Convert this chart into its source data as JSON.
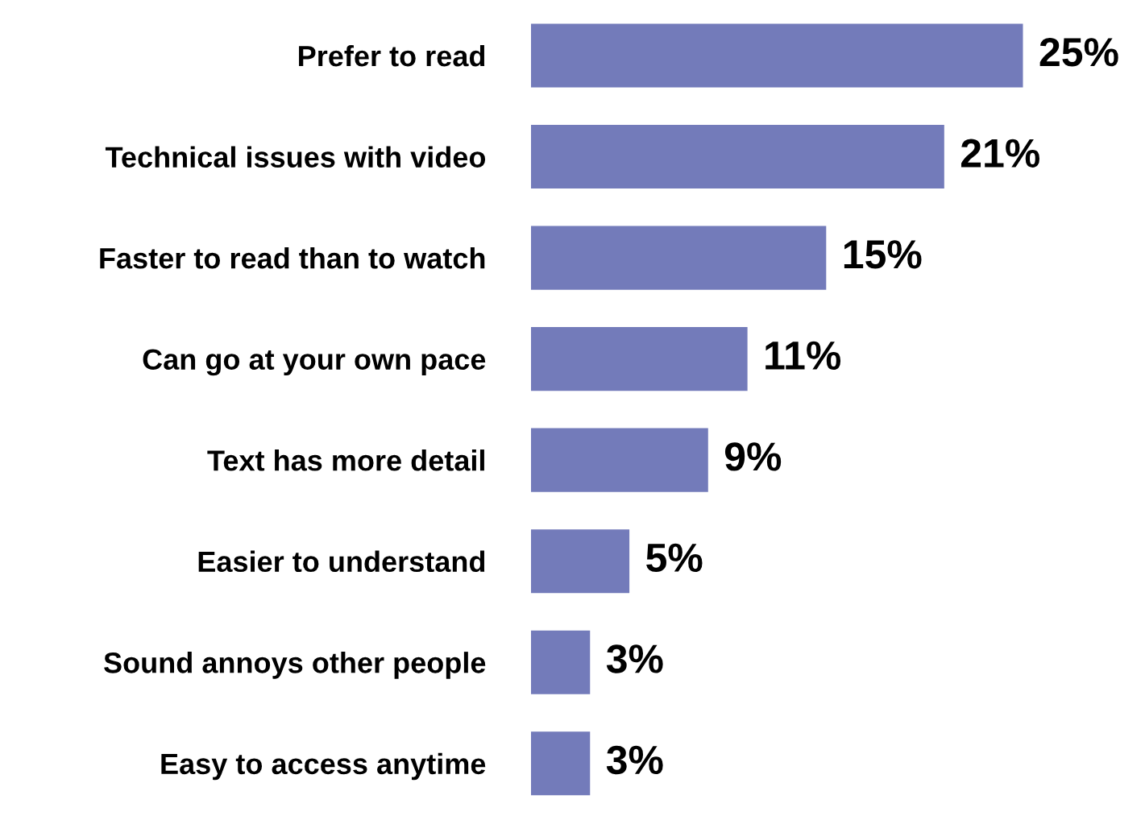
{
  "chart_data": {
    "type": "bar",
    "orientation": "horizontal",
    "categories": [
      "Prefer to read",
      "Technical issues with video",
      "Faster to read than to watch",
      "Can go at your own pace",
      "Text has more detail",
      "Easier to understand",
      "Sound annoys other people",
      "Easy to access anytime"
    ],
    "values": [
      25,
      21,
      15,
      11,
      9,
      5,
      3,
      3
    ],
    "value_labels": [
      "25%",
      "21%",
      "15%",
      "11%",
      "9%",
      "5%",
      "3%",
      "3%"
    ],
    "color": "#737bba",
    "grid": false,
    "legend": false,
    "tick_labels": "y"
  }
}
